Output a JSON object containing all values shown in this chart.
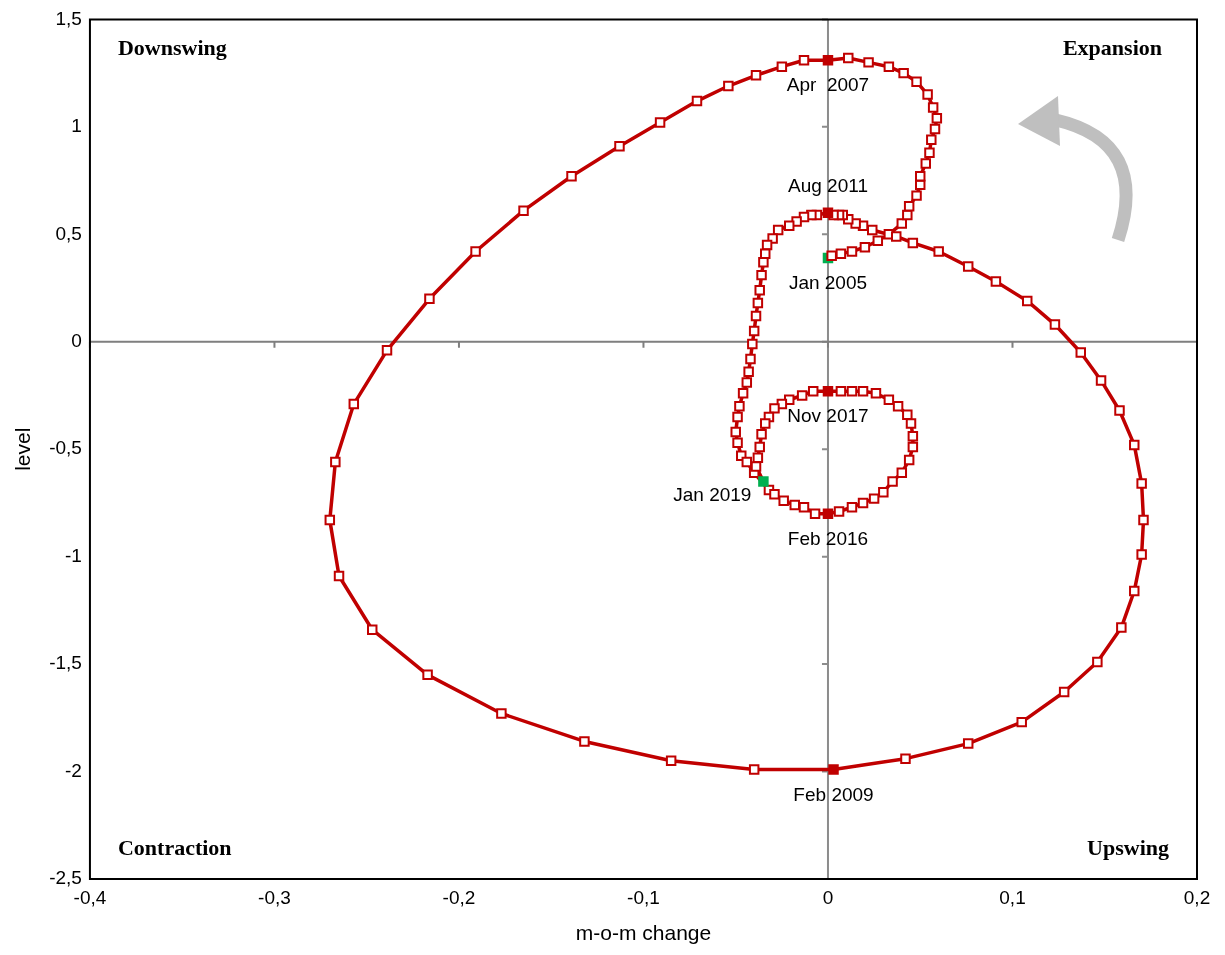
{
  "chart_data": {
    "type": "line",
    "xlabel": "m-o-m change",
    "ylabel": "level",
    "xlim": [
      -0.4,
      0.2
    ],
    "xticks": [
      {
        "value": -0.4,
        "label": "-0,4"
      },
      {
        "value": -0.3,
        "label": "-0,3"
      },
      {
        "value": -0.2,
        "label": "-0,2"
      },
      {
        "value": -0.1,
        "label": "-0,1"
      },
      0,
      {
        "value": 0.1,
        "label": "0,1"
      },
      {
        "value": 0.2,
        "label": "0,2"
      }
    ],
    "ylim": [
      -2.5,
      1.5
    ],
    "yticks": [
      {
        "value": -2.5,
        "label": "-2,5"
      },
      -2,
      {
        "value": -1.5,
        "label": "-1,5"
      },
      -1,
      {
        "value": -0.5,
        "label": "-0,5"
      },
      0,
      {
        "value": 0.5,
        "label": "0,5"
      },
      1,
      {
        "value": 1.5,
        "label": "1,5"
      }
    ],
    "grid": false,
    "legend": false,
    "marker": "square",
    "line_style": "solid",
    "series": [
      {
        "color": "#c00000",
        "x": [
          0,
          0.002,
          0.007,
          0.013,
          0.02,
          0.027,
          0.033,
          0.04,
          0.043,
          0.044,
          0.048,
          0.05,
          0.05,
          0.053,
          0.055,
          0.056,
          0.058,
          0.059,
          0.057,
          0.054,
          0.048,
          0.041,
          0.033,
          0.022,
          0.011,
          0,
          -0.013,
          -0.025,
          -0.039,
          -0.054,
          -0.071,
          -0.091,
          -0.113,
          -0.139,
          -0.165,
          -0.191,
          -0.216,
          -0.239,
          -0.257,
          -0.267,
          -0.27,
          -0.265,
          -0.247,
          -0.217,
          -0.177,
          -0.132,
          -0.085,
          -0.04,
          0.003,
          0.042,
          0.076,
          0.105,
          0.128,
          0.146,
          0.159,
          0.166,
          0.17,
          0.171,
          0.17,
          0.166,
          0.158,
          0.148,
          0.137,
          0.123,
          0.108,
          0.091,
          0.076,
          0.06,
          0.046,
          0.037,
          0.024,
          0.019,
          0.015,
          0.011,
          0.008,
          0.006,
          0.003,
          0,
          -0.006,
          -0.009,
          -0.013,
          -0.017,
          -0.021,
          -0.027,
          -0.03,
          -0.033,
          -0.034,
          -0.035,
          -0.036,
          -0.037,
          -0.038,
          -0.039,
          -0.04,
          -0.041,
          -0.042,
          -0.043,
          -0.044,
          -0.046,
          -0.048,
          -0.049,
          -0.05,
          -0.049,
          -0.047,
          -0.044,
          -0.04,
          -0.032,
          -0.029,
          -0.024,
          -0.018,
          -0.013,
          -0.007,
          0,
          0.006,
          0.013,
          0.019,
          0.025,
          0.03,
          0.035,
          0.04,
          0.044,
          0.046,
          0.046,
          0.045,
          0.043,
          0.038,
          0.033,
          0.026,
          0.019,
          0.013,
          0.007,
          0,
          -0.008,
          -0.014,
          -0.021,
          -0.025,
          -0.029,
          -0.032,
          -0.034,
          -0.036,
          -0.037,
          -0.038,
          -0.039,
          -0.035
        ],
        "values": [
          0.39,
          0.4,
          0.41,
          0.42,
          0.44,
          0.47,
          0.5,
          0.55,
          0.59,
          0.63,
          0.68,
          0.73,
          0.77,
          0.83,
          0.88,
          0.94,
          0.99,
          1.04,
          1.09,
          1.15,
          1.21,
          1.25,
          1.28,
          1.3,
          1.32,
          1.31,
          1.31,
          1.28,
          1.24,
          1.19,
          1.12,
          1.02,
          0.91,
          0.77,
          0.61,
          0.42,
          0.2,
          -0.04,
          -0.29,
          -0.56,
          -0.83,
          -1.09,
          -1.34,
          -1.55,
          -1.73,
          -1.86,
          -1.95,
          -1.99,
          -1.99,
          -1.94,
          -1.87,
          -1.77,
          -1.63,
          -1.49,
          -1.33,
          -1.16,
          -0.99,
          -0.83,
          -0.66,
          -0.48,
          -0.32,
          -0.18,
          -0.05,
          0.08,
          0.19,
          0.28,
          0.35,
          0.42,
          0.46,
          0.49,
          0.52,
          0.54,
          0.55,
          0.57,
          0.59,
          0.59,
          0.59,
          0.6,
          0.59,
          0.59,
          0.58,
          0.56,
          0.54,
          0.52,
          0.48,
          0.45,
          0.41,
          0.37,
          0.31,
          0.24,
          0.18,
          0.12,
          0.05,
          -0.01,
          -0.08,
          -0.14,
          -0.19,
          -0.24,
          -0.3,
          -0.35,
          -0.42,
          -0.47,
          -0.53,
          -0.56,
          -0.61,
          -0.69,
          -0.71,
          -0.74,
          -0.76,
          -0.77,
          -0.8,
          -0.8,
          -0.79,
          -0.77,
          -0.75,
          -0.73,
          -0.7,
          -0.65,
          -0.61,
          -0.55,
          -0.49,
          -0.44,
          -0.38,
          -0.34,
          -0.3,
          -0.27,
          -0.24,
          -0.23,
          -0.23,
          -0.23,
          -0.23,
          -0.23,
          -0.25,
          -0.27,
          -0.29,
          -0.31,
          -0.35,
          -0.38,
          -0.43,
          -0.49,
          -0.54,
          -0.58,
          -0.65
        ],
        "colors": [
          "#00b050",
          "#ffffff",
          "#ffffff",
          "#ffffff",
          "#ffffff",
          "#ffffff",
          "#ffffff",
          "#ffffff",
          "#ffffff",
          "#ffffff",
          "#ffffff",
          "#ffffff",
          "#ffffff",
          "#ffffff",
          "#ffffff",
          "#ffffff",
          "#ffffff",
          "#ffffff",
          "#ffffff",
          "#ffffff",
          "#ffffff",
          "#ffffff",
          "#ffffff",
          "#ffffff",
          "#ffffff",
          "#c00000",
          "#ffffff",
          "#ffffff",
          "#ffffff",
          "#ffffff",
          "#ffffff",
          "#ffffff",
          "#ffffff",
          "#ffffff",
          "#ffffff",
          "#ffffff",
          "#ffffff",
          "#ffffff",
          "#ffffff",
          "#ffffff",
          "#ffffff",
          "#ffffff",
          "#ffffff",
          "#ffffff",
          "#ffffff",
          "#ffffff",
          "#ffffff",
          "#ffffff",
          "#c00000",
          "#ffffff",
          "#ffffff",
          "#ffffff",
          "#ffffff",
          "#ffffff",
          "#ffffff",
          "#ffffff",
          "#ffffff",
          "#ffffff",
          "#ffffff",
          "#ffffff",
          "#ffffff",
          "#ffffff",
          "#ffffff",
          "#ffffff",
          "#ffffff",
          "#ffffff",
          "#ffffff",
          "#ffffff",
          "#ffffff",
          "#ffffff",
          "#ffffff",
          "#ffffff",
          "#ffffff",
          "#ffffff",
          "#ffffff",
          "#ffffff",
          "#ffffff",
          "#c00000",
          "#ffffff",
          "#ffffff",
          "#ffffff",
          "#ffffff",
          "#ffffff",
          "#ffffff",
          "#ffffff",
          "#ffffff",
          "#ffffff",
          "#ffffff",
          "#ffffff",
          "#ffffff",
          "#ffffff",
          "#ffffff",
          "#ffffff",
          "#ffffff",
          "#ffffff",
          "#ffffff",
          "#ffffff",
          "#ffffff",
          "#ffffff",
          "#ffffff",
          "#ffffff",
          "#ffffff",
          "#ffffff",
          "#ffffff",
          "#ffffff",
          "#ffffff",
          "#ffffff",
          "#ffffff",
          "#ffffff",
          "#ffffff",
          "#ffffff",
          "#c00000",
          "#ffffff",
          "#ffffff",
          "#ffffff",
          "#ffffff",
          "#ffffff",
          "#ffffff",
          "#ffffff",
          "#ffffff",
          "#ffffff",
          "#ffffff",
          "#ffffff",
          "#ffffff",
          "#ffffff",
          "#ffffff",
          "#ffffff",
          "#ffffff",
          "#ffffff",
          "#ffffff",
          "#c00000",
          "#ffffff",
          "#ffffff",
          "#ffffff",
          "#ffffff",
          "#ffffff",
          "#ffffff",
          "#ffffff",
          "#ffffff",
          "#ffffff",
          "#ffffff",
          "#ffffff",
          "#00b050"
        ]
      }
    ],
    "annotations": [
      "Downswing",
      "Expansion",
      "Contraction",
      "Upswing",
      {
        "text": "Jan 2005",
        "x": 0,
        "y": 0.39
      },
      {
        "text": "Apr  2007",
        "x": 0,
        "y": 1.31
      },
      {
        "text": "Feb 2009",
        "x": 0.003,
        "y": -1.99
      },
      {
        "text": "Aug 2011",
        "x": 0,
        "y": 0.6
      },
      {
        "text": "Feb 2016",
        "x": 0,
        "y": -0.8
      },
      {
        "text": "Nov 2017",
        "x": 0,
        "y": -0.23
      },
      {
        "text": "Jan 2019",
        "x": -0.035,
        "y": -0.65
      }
    ],
    "ref_lines": [
      {
        "axis": "x",
        "value": 0,
        "color": "#8c8c8c"
      },
      {
        "axis": "y",
        "value": 0,
        "color": "#7f7f7f"
      }
    ]
  }
}
